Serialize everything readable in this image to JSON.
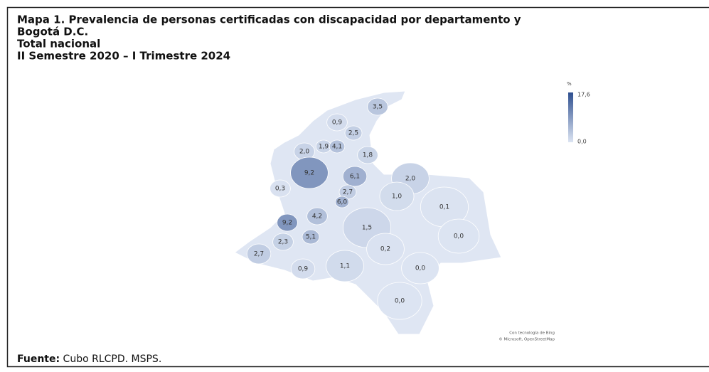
{
  "header": {
    "title_lines": [
      "Mapa 1. Prevalencia de personas certificadas con discapacidad por departamento y",
      "Bogotá D.C.",
      "Total nacional",
      "II Semestre 2020 – I Trimestre 2024"
    ]
  },
  "legend": {
    "unit": "%",
    "max": {
      "value": 17.6,
      "label": "17,6"
    },
    "min": {
      "value": 0,
      "label": "0,0"
    }
  },
  "regions": {
    "values": [
      3.5,
      0.9,
      2.5,
      1.9,
      4.1,
      1.8,
      2.0,
      9.2,
      6.1,
      2.0,
      0.3,
      2.7,
      1.0,
      0.1,
      6.0,
      4.2,
      9.2,
      1.5,
      0.0,
      5.1,
      2.3,
      2.7,
      0.2,
      1.1,
      0.9,
      0.0,
      0.0
    ],
    "value_labels": [
      "3,5",
      "0,9",
      "2,5",
      "1,9",
      "4,1",
      "1,8",
      "2,0",
      "9,2",
      "6,1",
      "2,0",
      "0,3",
      "2,7",
      "1,0",
      "0,1",
      "6,0",
      "4,2",
      "9,2",
      "1,5",
      "0,0",
      "5,1",
      "2,3",
      "2,7",
      "0,2",
      "1,1",
      "0,9",
      "0,0",
      "0,0"
    ]
  },
  "attribution": [
    "Con tecnología de Bing",
    "© Microsoft, OpenStreetMap"
  ],
  "footer": {
    "label": "Fuente:",
    "text": " Cubo RLCPD. MSPS."
  }
}
